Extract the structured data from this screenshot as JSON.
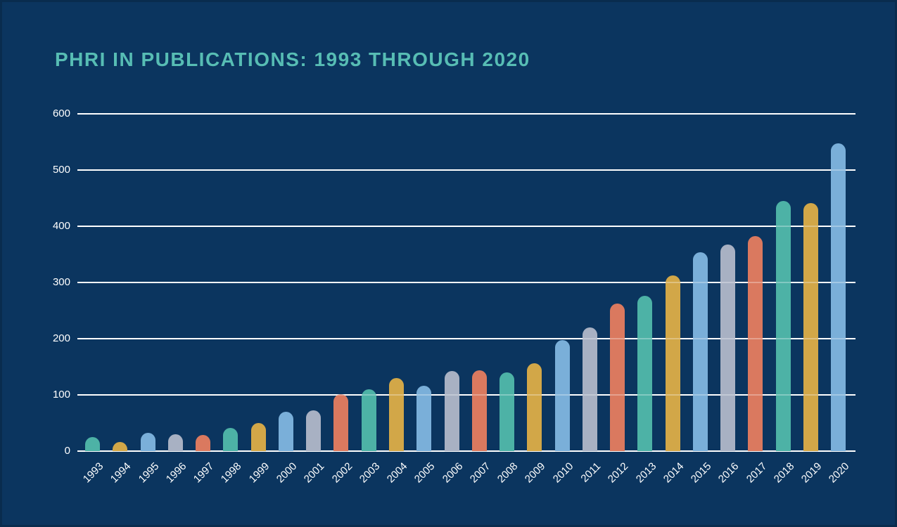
{
  "title": "PHRI IN PUBLICATIONS: 1993 THROUGH 2020",
  "colors": {
    "background": "#0B355F",
    "border": "#092C4E",
    "title_text": "#57BDB4",
    "grid_line": "#FFFFFF",
    "tick_text": "#FFFFFF",
    "bar_cycle": [
      "#4DB2A6",
      "#D2A748",
      "#7AAFD9",
      "#A8B1C3",
      "#DA795F"
    ]
  },
  "chart_data": {
    "type": "bar",
    "title": "PHRI IN PUBLICATIONS: 1993 THROUGH 2020",
    "categories": [
      "1993",
      "1994",
      "1995",
      "1996",
      "1997",
      "1998",
      "1999",
      "2000",
      "2001",
      "2002",
      "2003",
      "2004",
      "2005",
      "2006",
      "2007",
      "2008",
      "2009",
      "2010",
      "2011",
      "2012",
      "2013",
      "2014",
      "2015",
      "2016",
      "2017",
      "2018",
      "2019",
      "2020"
    ],
    "values": [
      25,
      16,
      32,
      30,
      29,
      41,
      50,
      70,
      72,
      101,
      110,
      130,
      116,
      143,
      144,
      140,
      156,
      198,
      220,
      262,
      276,
      313,
      354,
      367,
      382,
      445,
      441,
      547
    ],
    "xlabel": "",
    "ylabel": "",
    "yticks": [
      0,
      100,
      200,
      300,
      400,
      500,
      600
    ],
    "ylim": [
      0,
      600
    ],
    "grid": "horizontal",
    "legend": "none",
    "bar_color_pattern": "5-color repeating cycle: teal, gold, blue, gray, red"
  }
}
